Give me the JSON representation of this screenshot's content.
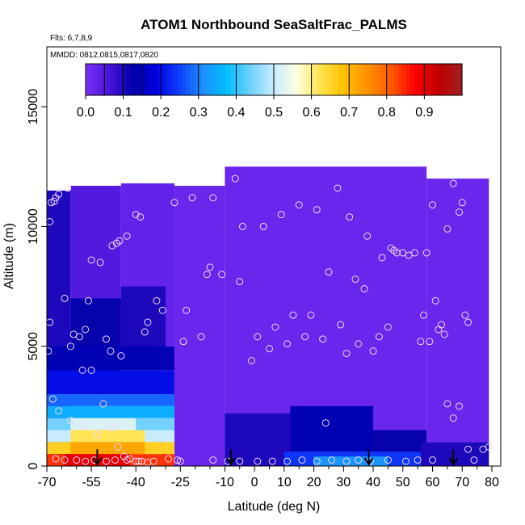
{
  "chart_data": {
    "type": "heatmap",
    "title": "ATOM1 Northbound SeaSaltFrac_PALMS",
    "annotations": [
      "Flts: 6,7,8,9",
      "MMDD: 0812,0815,0817,0820"
    ],
    "xlabel": "Latitude (deg N)",
    "ylabel": "Altitude (m)",
    "xlim": [
      -70,
      83
    ],
    "ylim": [
      0,
      17500
    ],
    "x_ticks": [
      -70,
      -55,
      -40,
      -25,
      -10,
      0,
      10,
      20,
      30,
      40,
      50,
      60,
      70,
      80
    ],
    "x_tick_labels": [
      "-70",
      "-55",
      "-40",
      "-25",
      "-10",
      "0",
      "10",
      "20",
      "30",
      "40",
      "50",
      "60",
      "70",
      "80"
    ],
    "x_minor_ticks": [
      -65,
      -60,
      -50,
      -45,
      -35,
      -30,
      -20,
      -15,
      -5,
      5,
      15,
      25,
      35,
      45,
      55,
      65,
      75
    ],
    "y_ticks": [
      0,
      5000,
      10000,
      15000
    ],
    "y_tick_labels": [
      "0",
      "5000",
      "10000",
      "15000"
    ],
    "colorbar": {
      "min": 0.0,
      "max": 1.0,
      "ticks": [
        0.0,
        0.1,
        0.2,
        0.3,
        0.4,
        0.5,
        0.6,
        0.7,
        0.8,
        0.9
      ],
      "tick_labels": [
        "0.0",
        "0.1",
        "0.2",
        "0.3",
        "0.4",
        "0.5",
        "0.6",
        "0.7",
        "0.8",
        "0.9"
      ],
      "colors": [
        "#7b2ff7",
        "#4a14d9",
        "#0000a8",
        "#0000e0",
        "#1040ff",
        "#1e90ff",
        "#00bfff",
        "#70d0ff",
        "#c8ecff",
        "#ffffe0",
        "#ffe24a",
        "#ffc000",
        "#ff9000",
        "#ff5a00",
        "#ff0000",
        "#c00000",
        "#a02020"
      ]
    },
    "flight_marker_latitudes": [
      -53,
      -8,
      38.5,
      67
    ],
    "regions": [
      {
        "x0": -70,
        "x1": -62,
        "y0": 0,
        "y1": 11500,
        "v": 0.1
      },
      {
        "x0": -62,
        "x1": -45,
        "y0": 5000,
        "y1": 11700,
        "v": 0.05
      },
      {
        "x0": -45,
        "x1": -27,
        "y0": 5000,
        "y1": 11800,
        "v": 0.03
      },
      {
        "x0": -27,
        "x1": -10,
        "y0": 0,
        "y1": 11700,
        "v": 0.02
      },
      {
        "x0": -10,
        "x1": 58,
        "y0": 500,
        "y1": 12500,
        "v": 0.02
      },
      {
        "x0": 58,
        "x1": 79,
        "y0": 1000,
        "y1": 12000,
        "v": 0.02
      },
      {
        "x0": -62,
        "x1": -45,
        "y0": 3500,
        "y1": 7000,
        "v": 0.12
      },
      {
        "x0": -45,
        "x1": -30,
        "y0": 4500,
        "y1": 7500,
        "v": 0.1
      },
      {
        "x0": -70,
        "x1": -27,
        "y0": 4000,
        "y1": 5000,
        "v": 0.14
      },
      {
        "x0": -70,
        "x1": -27,
        "y0": 3000,
        "y1": 4000,
        "v": 0.2
      },
      {
        "x0": -70,
        "x1": -27,
        "y0": 2500,
        "y1": 3000,
        "v": 0.28
      },
      {
        "x0": -70,
        "x1": -27,
        "y0": 2000,
        "y1": 2500,
        "v": 0.35
      },
      {
        "x0": -70,
        "x1": -27,
        "y0": 1500,
        "y1": 2000,
        "v": 0.44
      },
      {
        "x0": -62,
        "x1": -40,
        "y0": 1500,
        "y1": 2000,
        "v": 0.52
      },
      {
        "x0": -70,
        "x1": -27,
        "y0": 1000,
        "y1": 1500,
        "v": 0.5
      },
      {
        "x0": -62,
        "x1": -37,
        "y0": 1000,
        "y1": 1500,
        "v": 0.62
      },
      {
        "x0": -70,
        "x1": -27,
        "y0": 500,
        "y1": 1000,
        "v": 0.66
      },
      {
        "x0": -62,
        "x1": -37,
        "y0": 500,
        "y1": 1000,
        "v": 0.72
      },
      {
        "x0": -70,
        "x1": -27,
        "y0": 0,
        "y1": 500,
        "v": 0.84
      },
      {
        "x0": -64,
        "x1": -42,
        "y0": 0,
        "y1": 500,
        "v": 0.9
      },
      {
        "x0": -10,
        "x1": 12,
        "y0": 0,
        "y1": 2200,
        "v": 0.1
      },
      {
        "x0": 12,
        "x1": 40,
        "y0": 600,
        "y1": 2500,
        "v": 0.14
      },
      {
        "x0": 40,
        "x1": 58,
        "y0": 500,
        "y1": 1500,
        "v": 0.12
      },
      {
        "x0": 10,
        "x1": 56,
        "y0": 0,
        "y1": 600,
        "v": 0.24
      },
      {
        "x0": 20,
        "x1": 45,
        "y0": 0,
        "y1": 400,
        "v": 0.32
      },
      {
        "x0": 56,
        "x1": 79,
        "y0": 0,
        "y1": 1000,
        "v": 0.1
      }
    ],
    "points": [
      [
        -69,
        10200
      ],
      [
        -68.5,
        11000
      ],
      [
        -67.5,
        11050
      ],
      [
        -67,
        11200
      ],
      [
        -66,
        11350
      ],
      [
        -63,
        11600
      ],
      [
        -69,
        6000
      ],
      [
        -69.5,
        4800
      ],
      [
        -64,
        7000
      ],
      [
        -61,
        5500
      ],
      [
        -59,
        5400
      ],
      [
        -57,
        5700
      ],
      [
        -56,
        6900
      ],
      [
        -55,
        8600
      ],
      [
        -52,
        8500
      ],
      [
        -50,
        5300
      ],
      [
        -48.5,
        4800
      ],
      [
        -48,
        9200
      ],
      [
        -46.5,
        9300
      ],
      [
        -45.5,
        9400
      ],
      [
        -43,
        9600
      ],
      [
        -40,
        10500
      ],
      [
        -38.5,
        10400
      ],
      [
        -37,
        5600
      ],
      [
        -36,
        6000
      ],
      [
        -33,
        6900
      ],
      [
        -31,
        6500
      ],
      [
        -27,
        11000
      ],
      [
        -24,
        5200
      ],
      [
        -23,
        6500
      ],
      [
        -21,
        11200
      ],
      [
        -18,
        5400
      ],
      [
        -16,
        8000
      ],
      [
        -15,
        8300
      ],
      [
        -14,
        11200
      ],
      [
        -11,
        8000
      ],
      [
        -6.5,
        12000
      ],
      [
        -5,
        7700
      ],
      [
        -4,
        10000
      ],
      [
        -1,
        4400
      ],
      [
        1,
        5400
      ],
      [
        3,
        10000
      ],
      [
        5,
        4900
      ],
      [
        7,
        5800
      ],
      [
        9,
        10500
      ],
      [
        11,
        5100
      ],
      [
        13,
        6300
      ],
      [
        15,
        10900
      ],
      [
        17,
        5400
      ],
      [
        19,
        6300
      ],
      [
        21,
        10700
      ],
      [
        23,
        5300
      ],
      [
        25,
        8100
      ],
      [
        28,
        11600
      ],
      [
        29,
        5900
      ],
      [
        31,
        4700
      ],
      [
        32,
        10400
      ],
      [
        34,
        7800
      ],
      [
        35,
        5100
      ],
      [
        37,
        7400
      ],
      [
        38,
        9600
      ],
      [
        40,
        4800
      ],
      [
        42,
        5400
      ],
      [
        43,
        8700
      ],
      [
        45,
        5800
      ],
      [
        46,
        9100
      ],
      [
        47,
        9000
      ],
      [
        48,
        8900
      ],
      [
        50,
        8900
      ],
      [
        52,
        8800
      ],
      [
        54,
        8900
      ],
      [
        56,
        5200
      ],
      [
        57,
        6300
      ],
      [
        58,
        8900
      ],
      [
        59,
        5200
      ],
      [
        60,
        10900
      ],
      [
        61,
        6900
      ],
      [
        62,
        5700
      ],
      [
        63,
        5900
      ],
      [
        64,
        5500
      ],
      [
        65,
        9900
      ],
      [
        67,
        11800
      ],
      [
        69,
        10600
      ],
      [
        70,
        11000
      ],
      [
        71,
        6300
      ],
      [
        72,
        6000
      ],
      [
        -62,
        5000
      ],
      [
        -58,
        4000
      ],
      [
        -55,
        4000
      ],
      [
        -51,
        2600
      ],
      [
        -48,
        1600
      ],
      [
        -46,
        800
      ],
      [
        -44,
        400
      ],
      [
        -42,
        300
      ],
      [
        -40,
        200
      ],
      [
        -38,
        200
      ],
      [
        -36,
        150
      ],
      [
        -67,
        300
      ],
      [
        -64,
        250
      ],
      [
        -60,
        250
      ],
      [
        -57,
        200
      ],
      [
        -54,
        250
      ],
      [
        -50,
        200
      ],
      [
        -47,
        250
      ],
      [
        -43,
        250
      ],
      [
        -39,
        200
      ],
      [
        -34,
        200
      ],
      [
        -29,
        300
      ],
      [
        -26,
        250
      ],
      [
        -25,
        200
      ],
      [
        -14,
        250
      ],
      [
        -9,
        200
      ],
      [
        -5,
        200
      ],
      [
        1,
        200
      ],
      [
        6,
        200
      ],
      [
        11,
        200
      ],
      [
        16,
        250
      ],
      [
        21,
        200
      ],
      [
        26,
        250
      ],
      [
        31,
        200
      ],
      [
        35,
        250
      ],
      [
        39,
        200
      ],
      [
        45,
        250
      ],
      [
        51,
        200
      ],
      [
        55,
        250
      ],
      [
        60,
        250
      ],
      [
        65,
        2600
      ],
      [
        67,
        2000
      ],
      [
        69,
        2500
      ],
      [
        72,
        700
      ],
      [
        74,
        250
      ],
      [
        77,
        700
      ],
      [
        79,
        800
      ],
      [
        24,
        1800
      ],
      [
        -68,
        2800
      ],
      [
        -66,
        2300
      ],
      [
        -62,
        1900
      ],
      [
        -58,
        1700
      ],
      [
        -53,
        1300
      ],
      [
        -45,
        4600
      ]
    ]
  }
}
